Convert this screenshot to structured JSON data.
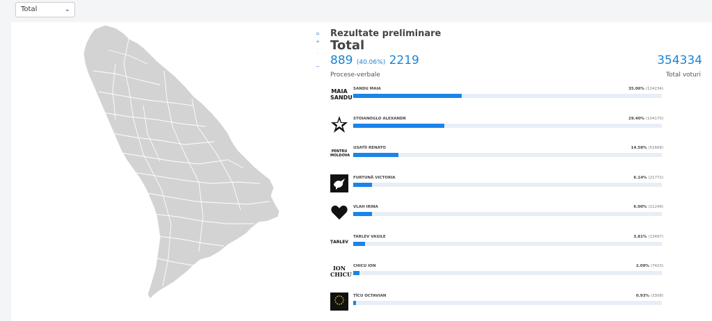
{
  "filter": {
    "selected": "Total"
  },
  "results": {
    "heading": "Rezultate preliminare",
    "subheading": "Total",
    "processed": "889",
    "processed_pct": "(40.06%)",
    "total_sections": "2219",
    "processed_label": "Procese-verbale",
    "total_votes": "354334",
    "total_votes_label": "Total voturi"
  },
  "candidates": [
    {
      "name": "SANDU MAIA",
      "pct_text": "35.06%",
      "votes_text": "(124234)",
      "share": 35.06,
      "logo": "maia-sandu-logo",
      "logo_text": "MAIA SANDU"
    },
    {
      "name": "STOIANOGLO ALEXANDR",
      "pct_text": "29.40%",
      "votes_text": "(104170)",
      "share": 29.4,
      "logo": "star-icon"
    },
    {
      "name": "USATÎI RENATO",
      "pct_text": "14.58%",
      "votes_text": "(51668)",
      "share": 14.58,
      "logo": "pentru-moldova-logo",
      "logo_text": "PENTRU MOLDOVA"
    },
    {
      "name": "FURTUNĂ VICTORIA",
      "pct_text": "6.14%",
      "votes_text": "(21772)",
      "share": 6.14,
      "logo": "dove-icon"
    },
    {
      "name": "VLAH IRINA",
      "pct_text": "6.00%",
      "votes_text": "(21249)",
      "share": 6.0,
      "logo": "heart-icon"
    },
    {
      "name": "TARLEV VASILE",
      "pct_text": "3.81%",
      "votes_text": "(13497)",
      "share": 3.81,
      "logo": "tarlev-logo",
      "logo_text": "ȚARLEV"
    },
    {
      "name": "CHICU ION",
      "pct_text": "2.09%",
      "votes_text": "(7423)",
      "share": 2.09,
      "logo": "ion-chicu-logo",
      "logo_text": "ION CHICU"
    },
    {
      "name": "ȚÎCU OCTAVIAN",
      "pct_text": "0.93%",
      "votes_text": "(3308)",
      "share": 0.93,
      "logo": "eu-stars-logo"
    }
  ],
  "colors": {
    "accent": "#1a84e8",
    "map_fill": "#d3d3d3",
    "bar_track": "#e8eef6"
  }
}
